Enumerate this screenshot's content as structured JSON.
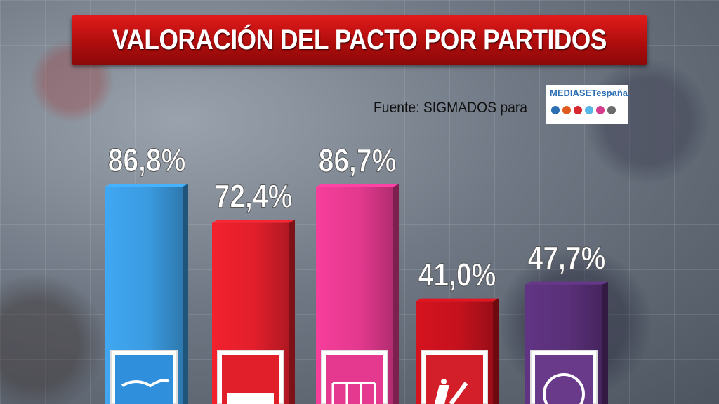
{
  "title": "VALORACIÓN DEL PACTO POR PARTIDOS",
  "source": "Fuente: SIGMADOS para",
  "logo": {
    "text_a": "MEDIASET",
    "text_b": "españa.",
    "dot_colors": [
      "#2c6fb2",
      "#e05a1e",
      "#d8272e",
      "#58b7e6",
      "#d53d8c",
      "#6b6b6b"
    ]
  },
  "colors": {
    "title_red": "#c51313",
    "PP": "#3b9be0",
    "PSOE": "#e11f2b",
    "UPyD": "#e4398f",
    "IU": "#c5121d",
    "Podemos": "#5a3079"
  },
  "chart_data": {
    "type": "bar",
    "categories": [
      "PP",
      "PSOE",
      "UPyD",
      "IU",
      "Podemos"
    ],
    "values": [
      86.8,
      72.4,
      86.7,
      41.0,
      47.7
    ],
    "labels": [
      "86,8%",
      "72,4%",
      "86,7%",
      "41,0%",
      "47,7%"
    ],
    "icons": [
      "pp-logo",
      "psoe-logo",
      "upyd-logo",
      "iu-logo",
      "podemos-logo"
    ],
    "title": "VALORACIÓN DEL PACTO POR PARTIDOS",
    "xlabel": "",
    "ylabel": "",
    "grid": false
  }
}
